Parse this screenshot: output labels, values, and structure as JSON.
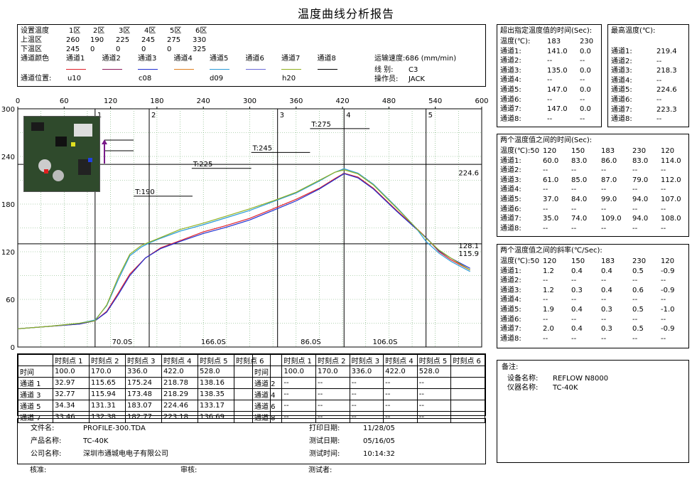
{
  "title": "温度曲线分析报告",
  "settings": {
    "row_labels": [
      "设置温度",
      "上温区",
      "下温区",
      "通道颜色"
    ],
    "zones": [
      "1区",
      "2区",
      "3区",
      "4区",
      "5区",
      "6区"
    ],
    "upper": [
      "260",
      "190",
      "225",
      "245",
      "275",
      "330"
    ],
    "lower": [
      "245",
      "0",
      "0",
      "0",
      "0",
      "325"
    ],
    "channel_names": [
      "通道1",
      "通道2",
      "通道3",
      "通道4",
      "通道5",
      "通道6",
      "通道7",
      "通道8"
    ],
    "channel_colors": [
      "#e0202a",
      "#8b1a5a",
      "#1f2fd0",
      "#e08020",
      "#2a9bd8",
      "#6a6ad8",
      "#90b020",
      "#000000"
    ],
    "position_label": "通道位置:",
    "positions": [
      "u10",
      "c08",
      "d09",
      "h20"
    ],
    "conveyor": "运输速度:686 (mm/min)",
    "line_label": "线 别:",
    "line_value": "C3",
    "operator_label": "操作员:",
    "operator_value": "JACK"
  },
  "over_temp": {
    "title": "超出指定温度值的时间(Sec):",
    "header": [
      "温度(℃):",
      "183",
      "230"
    ],
    "rows": [
      [
        "通道1:",
        "141.0",
        "0.0"
      ],
      [
        "通道2:",
        "--",
        "--"
      ],
      [
        "通道3:",
        "135.0",
        "0.0"
      ],
      [
        "通道4:",
        "--",
        "--"
      ],
      [
        "通道5:",
        "147.0",
        "0.0"
      ],
      [
        "通道6:",
        "--",
        "--"
      ],
      [
        "通道7:",
        "147.0",
        "0.0"
      ],
      [
        "通道8:",
        "--",
        "--"
      ]
    ]
  },
  "max_temp": {
    "title": "最高温度(℃):",
    "rows": [
      [
        "通道1:",
        "219.4"
      ],
      [
        "通道2:",
        "--"
      ],
      [
        "通道3:",
        "218.3"
      ],
      [
        "通道4:",
        "--"
      ],
      [
        "通道5:",
        "224.6"
      ],
      [
        "通道6:",
        "--"
      ],
      [
        "通道7:",
        "223.3"
      ],
      [
        "通道8:",
        "--"
      ]
    ]
  },
  "between_time": {
    "title": "两个温度值之间的时间(Sec):",
    "header": [
      "温度(℃):50",
      "120",
      "150",
      "183",
      "230",
      "120"
    ],
    "rows": [
      [
        "通道1:",
        "60.0",
        "83.0",
        "86.0",
        "83.0",
        "114.0"
      ],
      [
        "通道2:",
        "--",
        "--",
        "--",
        "--",
        "--"
      ],
      [
        "通道3:",
        "61.0",
        "85.0",
        "87.0",
        "79.0",
        "112.0"
      ],
      [
        "通道4:",
        "--",
        "--",
        "--",
        "--",
        "--"
      ],
      [
        "通道5:",
        "37.0",
        "84.0",
        "99.0",
        "94.0",
        "107.0"
      ],
      [
        "通道6:",
        "--",
        "--",
        "--",
        "--",
        "--"
      ],
      [
        "通道7:",
        "35.0",
        "74.0",
        "109.0",
        "94.0",
        "108.0"
      ],
      [
        "通道8:",
        "--",
        "--",
        "--",
        "--",
        "--"
      ]
    ]
  },
  "slope": {
    "title": "两个温度值之间的斜率(℃/Sec):",
    "header": [
      "温度(℃):50",
      "120",
      "150",
      "183",
      "230",
      "120"
    ],
    "rows": [
      [
        "通道1:",
        "1.2",
        "0.4",
        "0.4",
        "0.5",
        "-0.9"
      ],
      [
        "通道2:",
        "--",
        "--",
        "--",
        "--",
        "--"
      ],
      [
        "通道3:",
        "1.2",
        "0.3",
        "0.4",
        "0.6",
        "-0.9"
      ],
      [
        "通道4:",
        "--",
        "--",
        "--",
        "--",
        "--"
      ],
      [
        "通道5:",
        "1.9",
        "0.4",
        "0.3",
        "0.5",
        "-1.0"
      ],
      [
        "通道6:",
        "--",
        "--",
        "--",
        "--",
        "--"
      ],
      [
        "通道7:",
        "2.0",
        "0.4",
        "0.3",
        "0.5",
        "-0.9"
      ],
      [
        "通道8:",
        "--",
        "--",
        "--",
        "--",
        "--"
      ]
    ]
  },
  "remarks": {
    "title": "备注:",
    "device_label": "设备名称:",
    "device_value": "REFLOW N8000",
    "instrument_label": "仪器名称:",
    "instrument_value": "TC-40K"
  },
  "time_table": {
    "header": [
      "",
      "时刻点 1",
      "时刻点 2",
      "时刻点 3",
      "时刻点 4",
      "时刻点 5",
      "时刻点 6"
    ],
    "left": [
      [
        "时间",
        "100.0",
        "170.0",
        "336.0",
        "422.0",
        "528.0",
        ""
      ],
      [
        "通道 1",
        "32.97",
        "115.65",
        "175.24",
        "218.78",
        "138.16",
        ""
      ],
      [
        "通道 3",
        "32.77",
        "115.94",
        "173.48",
        "218.29",
        "138.35",
        ""
      ],
      [
        "通道 5",
        "34.34",
        "131.31",
        "183.07",
        "224.46",
        "133.17",
        ""
      ],
      [
        "通道 7",
        "33.46",
        "132.38",
        "182.77",
        "223.18",
        "136.69",
        ""
      ]
    ],
    "right": [
      [
        "时间",
        "100.0",
        "170.0",
        "336.0",
        "422.0",
        "528.0",
        ""
      ],
      [
        "通道 2",
        "--",
        "--",
        "--",
        "--",
        "--",
        ""
      ],
      [
        "通道 4",
        "--",
        "--",
        "--",
        "--",
        "--",
        ""
      ],
      [
        "通道 6",
        "--",
        "--",
        "--",
        "--",
        "--",
        ""
      ],
      [
        "通道 8",
        "--",
        "--",
        "--",
        "--",
        "--",
        ""
      ]
    ]
  },
  "footer": {
    "file_label": "文件名:",
    "file_value": "PROFILE-300.TDA",
    "product_label": "产品名称:",
    "product_value": "TC-40K",
    "company_label": "公司名称:",
    "company_value": "深圳市通城电电子有限公司",
    "print_label": "打印日期:",
    "print_value": "11/28/05",
    "test_date_label": "测试日期:",
    "test_date_value": "05/16/05",
    "test_time_label": "测试时间:",
    "test_time_value": "10:14:32",
    "approve_label": "核准:",
    "review_label": "审核:",
    "tester_label": "测试者:"
  },
  "chart_data": {
    "type": "line",
    "xlim": [
      0,
      600
    ],
    "ylim": [
      0,
      300
    ],
    "x_ticks": [
      "0",
      "60",
      "120",
      "180",
      "240",
      "300",
      "360",
      "420",
      "480",
      "540",
      "600"
    ],
    "y_ticks": [
      "0",
      "60",
      "120",
      "180",
      "240",
      "300"
    ],
    "marker_times": [
      100,
      170,
      336,
      422,
      528
    ],
    "marker_labels": [
      "1",
      "2",
      "3",
      "4",
      "5"
    ],
    "interval_labels": [
      "70.0S",
      "166.0S",
      "86.0S",
      "106.0S"
    ],
    "hlines": [
      130,
      230
    ],
    "hline_value_labels": [
      "128.1",
      "115.9",
      "224.6"
    ],
    "thresholds": [
      {
        "label": "T:190",
        "t0": 150,
        "t1": 226,
        "y": 190
      },
      {
        "label": "T:225",
        "t0": 225,
        "t1": 302,
        "y": 225
      },
      {
        "label": "T:245",
        "t0": 302,
        "t1": 378,
        "y": 245
      },
      {
        "label": "T:275",
        "t0": 378,
        "t1": 455,
        "y": 275
      }
    ],
    "series": [
      {
        "name": "通道1",
        "color": "#e0202a",
        "x": [
          0,
          40,
          80,
          100,
          115,
          130,
          145,
          165,
          185,
          210,
          240,
          270,
          300,
          330,
          360,
          390,
          410,
          422,
          440,
          460,
          490,
          515,
          528,
          545,
          560,
          585
        ],
        "y": [
          23,
          26,
          29,
          33,
          45,
          68,
          92,
          112,
          125,
          134,
          145,
          153,
          162,
          174,
          186,
          200,
          212,
          218.8,
          214,
          200,
          172,
          150,
          138,
          120,
          110,
          97
        ]
      },
      {
        "name": "通道3",
        "color": "#1f2fd0",
        "x": [
          0,
          40,
          80,
          100,
          115,
          130,
          145,
          165,
          185,
          210,
          240,
          270,
          300,
          330,
          360,
          390,
          410,
          422,
          440,
          460,
          490,
          515,
          528,
          545,
          560,
          585
        ],
        "y": [
          23,
          26,
          29,
          33,
          44,
          66,
          90,
          112,
          124,
          133,
          143,
          151,
          160,
          172,
          184,
          199,
          211,
          218.3,
          213,
          199,
          171,
          149,
          138,
          121,
          112,
          99
        ]
      },
      {
        "name": "通道5",
        "color": "#2a9bd8",
        "x": [
          0,
          40,
          80,
          100,
          115,
          130,
          145,
          160,
          170,
          185,
          210,
          240,
          270,
          300,
          330,
          360,
          390,
          410,
          422,
          440,
          460,
          490,
          515,
          528,
          545,
          560,
          585
        ],
        "y": [
          23,
          26,
          30,
          34,
          52,
          85,
          115,
          126,
          131,
          137,
          146,
          154,
          163,
          172,
          183,
          194,
          209,
          220,
          224.5,
          219,
          205,
          176,
          150,
          133,
          118,
          108,
          95
        ]
      },
      {
        "name": "通道7",
        "color": "#90b020",
        "x": [
          0,
          40,
          80,
          100,
          115,
          130,
          145,
          160,
          170,
          185,
          210,
          240,
          270,
          300,
          330,
          360,
          390,
          410,
          422,
          440,
          460,
          490,
          515,
          528,
          545,
          560,
          585
        ],
        "y": [
          23,
          26,
          30,
          33,
          53,
          88,
          117,
          128,
          132,
          138,
          148,
          156,
          165,
          174,
          184,
          195,
          210,
          220,
          223.2,
          218,
          204,
          175,
          150,
          137,
          122,
          112,
          97
        ]
      }
    ]
  }
}
